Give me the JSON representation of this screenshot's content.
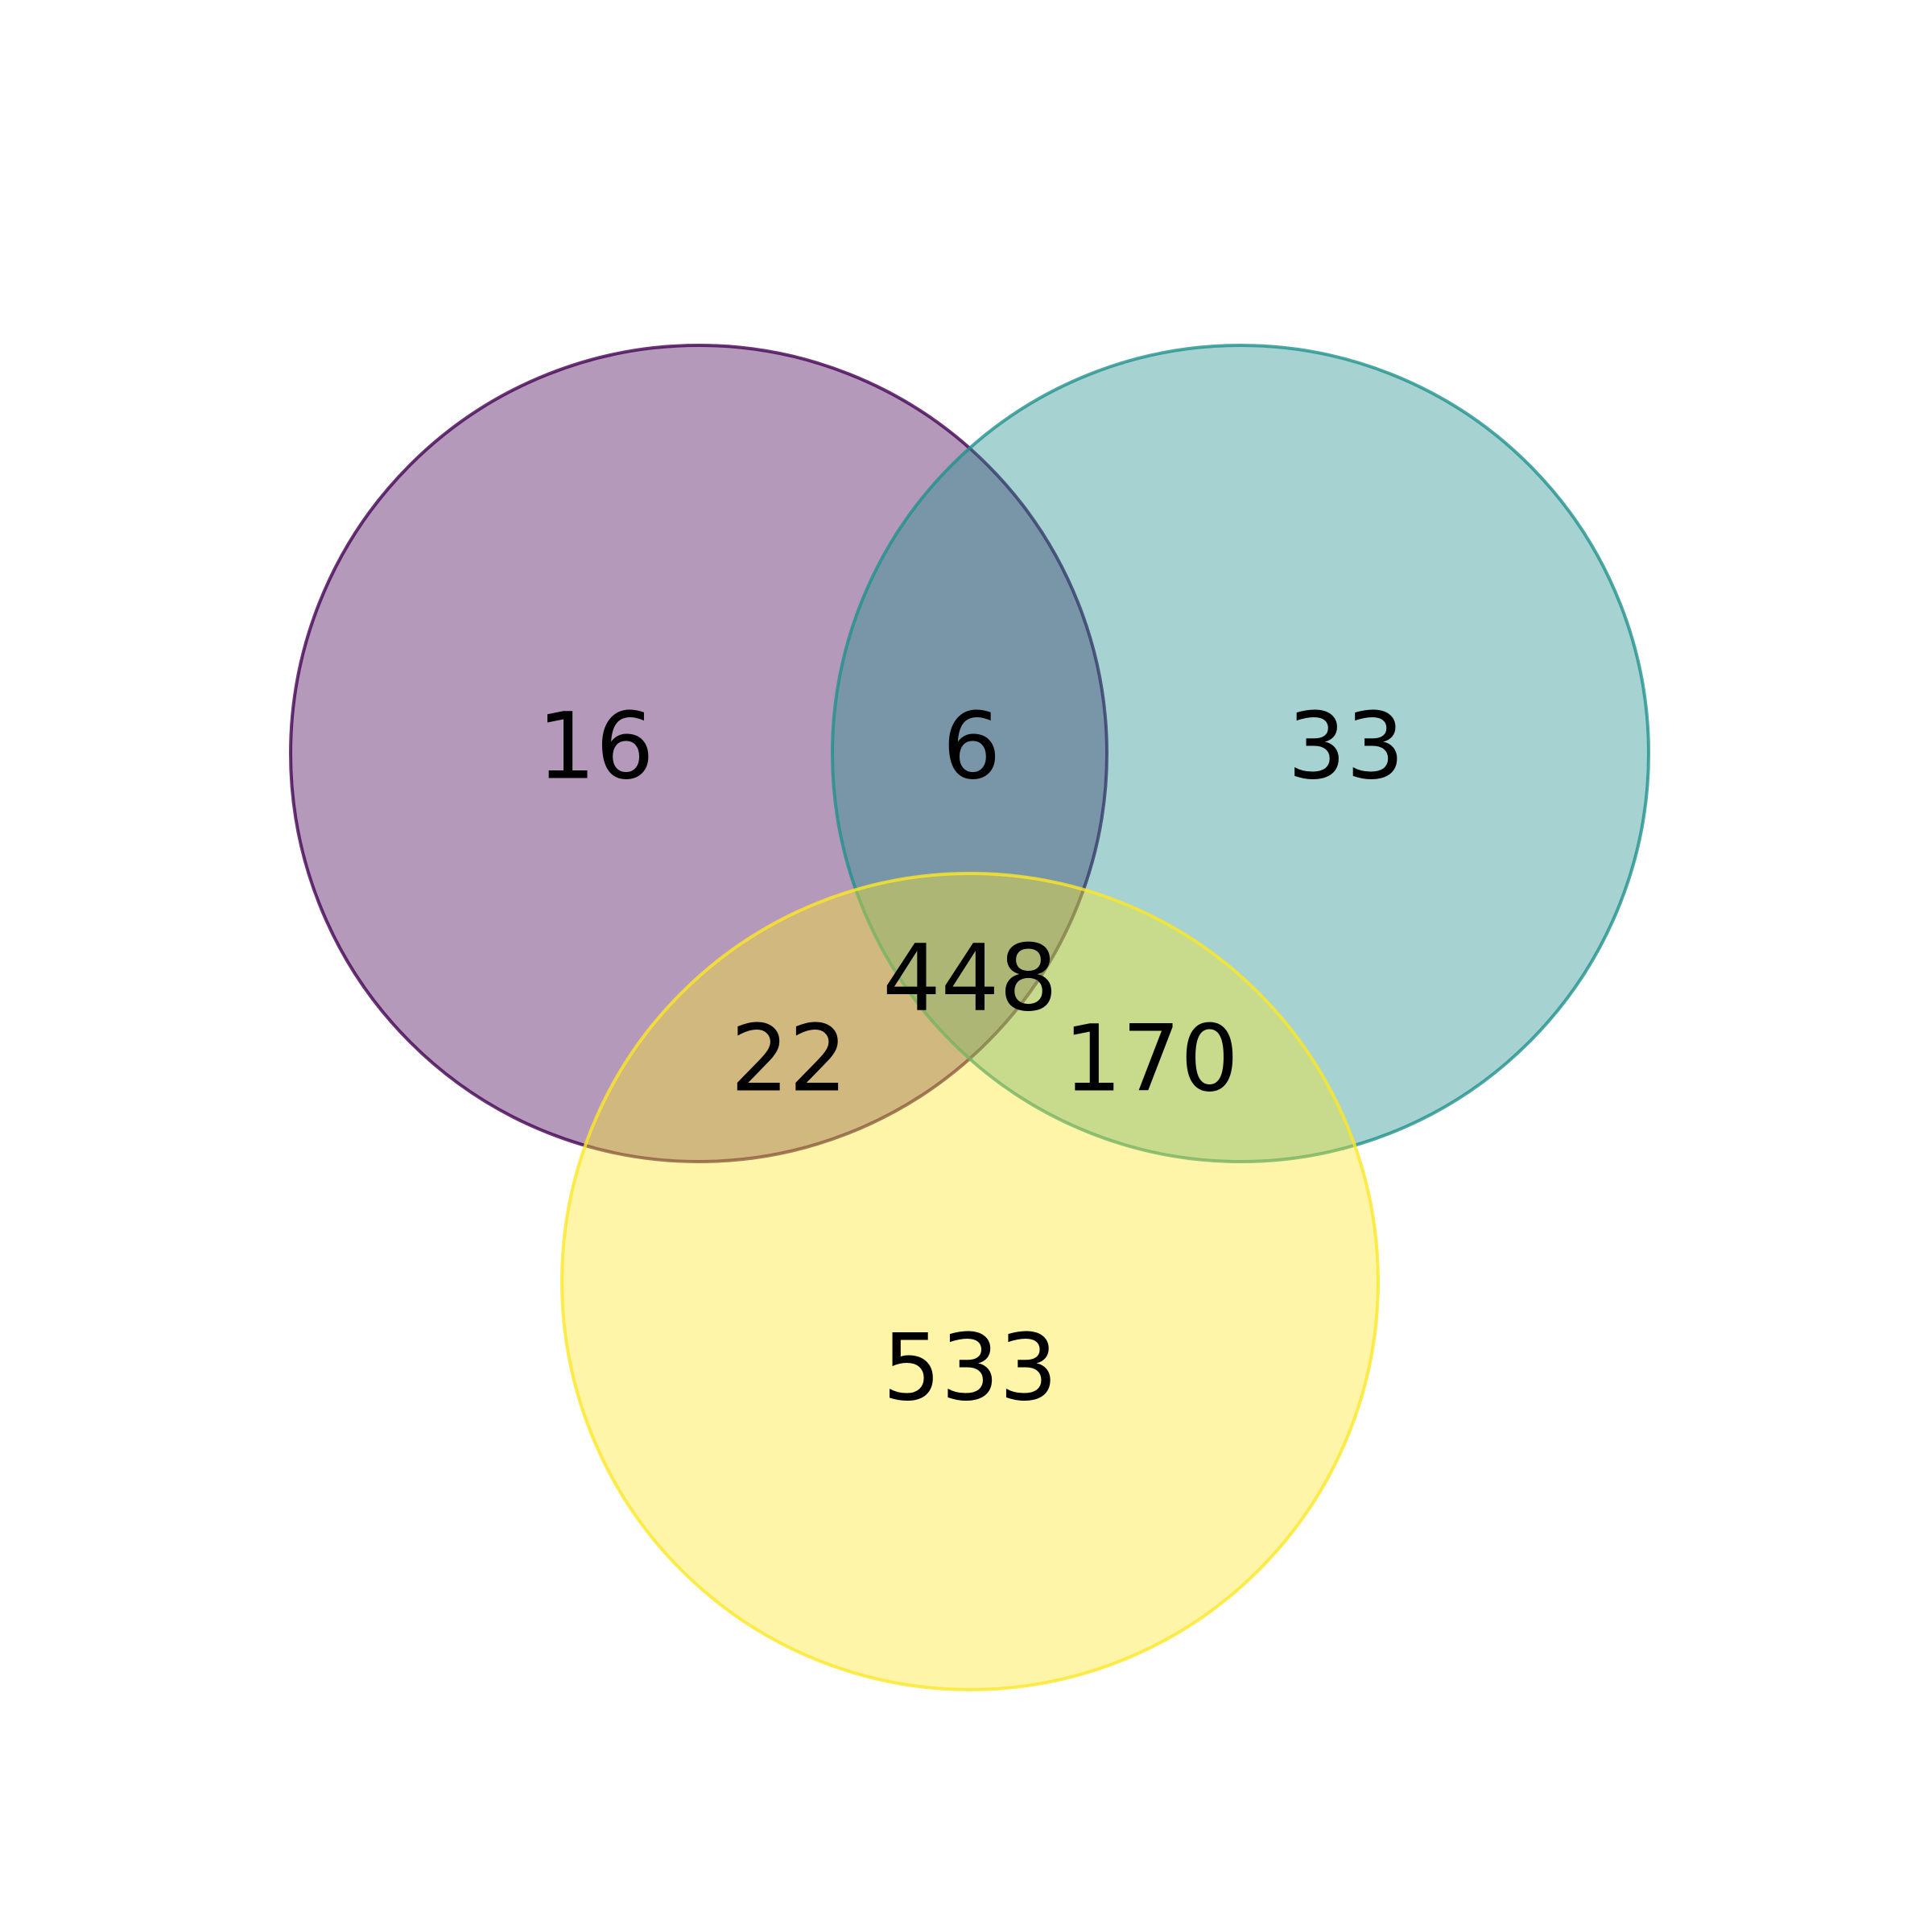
{
  "sets": [
    {
      "id": "a",
      "fill_color": "#440154",
      "stroke_color": "#440154"
    },
    {
      "id": "b",
      "fill_color": "#21918c",
      "stroke_color": "#21918c"
    },
    {
      "id": "c",
      "fill_color": "#fde725",
      "stroke_color": "#fde725"
    }
  ],
  "fill_opacity": 0.4,
  "regions": {
    "a_only": "16",
    "ab_only": "6",
    "b_only": "33",
    "abc": "448",
    "ac_only": "22",
    "bc_only": "170",
    "c_only": "533"
  }
}
